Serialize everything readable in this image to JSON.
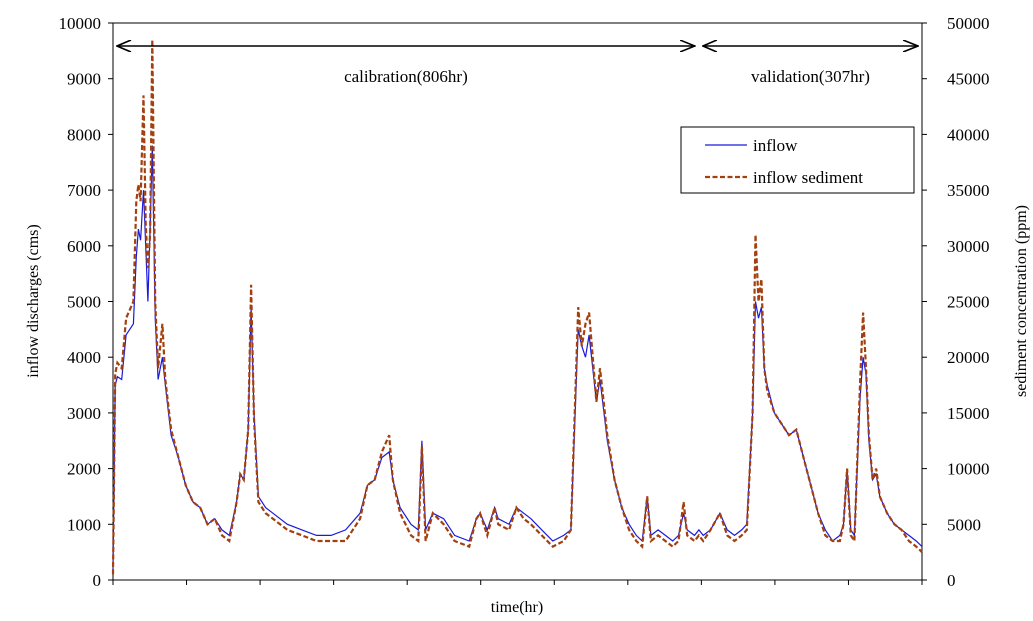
{
  "chart_data": {
    "type": "line",
    "title": "",
    "xlabel": "time(hr)",
    "ylabel": "inflow discharges (cms)",
    "y2label": "sediment concentration (ppm)",
    "xlim": [
      0,
      1113
    ],
    "ylim": [
      0,
      10000
    ],
    "y2lim": [
      0,
      50000
    ],
    "yticks": [
      "0",
      "1000",
      "2000",
      "3000",
      "4000",
      "5000",
      "6000",
      "7000",
      "8000",
      "9000",
      "10000"
    ],
    "y2ticks": [
      "0",
      "5000",
      "10000",
      "15000",
      "20000",
      "25000",
      "30000",
      "35000",
      "40000",
      "45000",
      "50000"
    ],
    "grid": false,
    "legend": "top-right",
    "annotations": [
      {
        "text": "calibration(806hr)",
        "from": 0,
        "to": 806
      },
      {
        "text": "validation(307hr)",
        "from": 806,
        "to": 1113
      }
    ],
    "series": [
      {
        "name": "inflow",
        "axis": "left",
        "color": "#1a1adb",
        "style": "solid",
        "points": [
          [
            0,
            200
          ],
          [
            3,
            3500
          ],
          [
            6,
            3650
          ],
          [
            12,
            3600
          ],
          [
            18,
            4400
          ],
          [
            28,
            4600
          ],
          [
            32,
            5800
          ],
          [
            35,
            6300
          ],
          [
            38,
            6100
          ],
          [
            42,
            7000
          ],
          [
            45,
            6000
          ],
          [
            48,
            5000
          ],
          [
            51,
            6300
          ],
          [
            54,
            7800
          ],
          [
            58,
            4700
          ],
          [
            62,
            3600
          ],
          [
            68,
            4000
          ],
          [
            72,
            3500
          ],
          [
            80,
            2600
          ],
          [
            90,
            2200
          ],
          [
            100,
            1700
          ],
          [
            110,
            1400
          ],
          [
            120,
            1300
          ],
          [
            130,
            1000
          ],
          [
            140,
            1100
          ],
          [
            150,
            900
          ],
          [
            160,
            800
          ],
          [
            170,
            1400
          ],
          [
            175,
            1900
          ],
          [
            180,
            1800
          ],
          [
            186,
            2700
          ],
          [
            190,
            4900
          ],
          [
            194,
            3000
          ],
          [
            200,
            1500
          ],
          [
            210,
            1300
          ],
          [
            220,
            1200
          ],
          [
            240,
            1000
          ],
          [
            260,
            900
          ],
          [
            280,
            800
          ],
          [
            300,
            800
          ],
          [
            320,
            900
          ],
          [
            340,
            1200
          ],
          [
            350,
            1700
          ],
          [
            360,
            1800
          ],
          [
            370,
            2200
          ],
          [
            380,
            2300
          ],
          [
            385,
            1800
          ],
          [
            395,
            1300
          ],
          [
            410,
            1000
          ],
          [
            420,
            900
          ],
          [
            425,
            2500
          ],
          [
            430,
            900
          ],
          [
            440,
            1200
          ],
          [
            455,
            1100
          ],
          [
            470,
            800
          ],
          [
            490,
            700
          ],
          [
            500,
            1100
          ],
          [
            505,
            1200
          ],
          [
            515,
            900
          ],
          [
            525,
            1300
          ],
          [
            530,
            1100
          ],
          [
            545,
            1000
          ],
          [
            555,
            1300
          ],
          [
            565,
            1200
          ],
          [
            575,
            1100
          ],
          [
            590,
            900
          ],
          [
            605,
            700
          ],
          [
            620,
            800
          ],
          [
            630,
            900
          ],
          [
            640,
            4500
          ],
          [
            645,
            4200
          ],
          [
            650,
            4000
          ],
          [
            655,
            4400
          ],
          [
            665,
            3200
          ],
          [
            670,
            3600
          ],
          [
            680,
            2500
          ],
          [
            690,
            1800
          ],
          [
            700,
            1300
          ],
          [
            710,
            1000
          ],
          [
            720,
            800
          ],
          [
            728,
            700
          ],
          [
            735,
            1500
          ],
          [
            740,
            800
          ],
          [
            750,
            900
          ],
          [
            760,
            800
          ],
          [
            770,
            700
          ],
          [
            778,
            800
          ],
          [
            785,
            1200
          ],
          [
            790,
            900
          ],
          [
            800,
            800
          ],
          [
            806,
            900
          ],
          [
            812,
            800
          ],
          [
            822,
            900
          ],
          [
            835,
            1200
          ],
          [
            845,
            900
          ],
          [
            855,
            800
          ],
          [
            865,
            900
          ],
          [
            872,
            1000
          ],
          [
            880,
            3000
          ],
          [
            884,
            5000
          ],
          [
            888,
            4700
          ],
          [
            892,
            4900
          ],
          [
            896,
            3800
          ],
          [
            900,
            3500
          ],
          [
            910,
            3000
          ],
          [
            920,
            2800
          ],
          [
            930,
            2600
          ],
          [
            940,
            2700
          ],
          [
            950,
            2200
          ],
          [
            960,
            1700
          ],
          [
            970,
            1200
          ],
          [
            980,
            900
          ],
          [
            990,
            700
          ],
          [
            1000,
            800
          ],
          [
            1005,
            1000
          ],
          [
            1010,
            2000
          ],
          [
            1015,
            900
          ],
          [
            1020,
            800
          ],
          [
            1028,
            3300
          ],
          [
            1032,
            4000
          ],
          [
            1036,
            3700
          ],
          [
            1040,
            2500
          ],
          [
            1045,
            1800
          ],
          [
            1050,
            1900
          ],
          [
            1055,
            1500
          ],
          [
            1065,
            1200
          ],
          [
            1075,
            1000
          ],
          [
            1085,
            900
          ],
          [
            1095,
            800
          ],
          [
            1105,
            700
          ],
          [
            1113,
            600
          ]
        ]
      },
      {
        "name": "inflow sediment",
        "axis": "right",
        "color": "#a3400f",
        "style": "dashed",
        "points": [
          [
            0,
            500
          ],
          [
            3,
            18500
          ],
          [
            6,
            19500
          ],
          [
            12,
            19000
          ],
          [
            18,
            23500
          ],
          [
            28,
            25000
          ],
          [
            32,
            34000
          ],
          [
            35,
            35500
          ],
          [
            38,
            34000
          ],
          [
            42,
            43500
          ],
          [
            45,
            32000
          ],
          [
            48,
            28000
          ],
          [
            51,
            31000
          ],
          [
            54,
            48500
          ],
          [
            58,
            25000
          ],
          [
            62,
            19000
          ],
          [
            68,
            23000
          ],
          [
            72,
            18000
          ],
          [
            80,
            13500
          ],
          [
            90,
            11000
          ],
          [
            100,
            8500
          ],
          [
            110,
            7000
          ],
          [
            120,
            6500
          ],
          [
            130,
            5000
          ],
          [
            140,
            5500
          ],
          [
            150,
            4000
          ],
          [
            160,
            3500
          ],
          [
            170,
            7000
          ],
          [
            175,
            9500
          ],
          [
            180,
            9000
          ],
          [
            186,
            13500
          ],
          [
            190,
            26500
          ],
          [
            194,
            14500
          ],
          [
            200,
            7000
          ],
          [
            210,
            6000
          ],
          [
            220,
            5500
          ],
          [
            240,
            4500
          ],
          [
            260,
            4000
          ],
          [
            280,
            3500
          ],
          [
            300,
            3500
          ],
          [
            320,
            3500
          ],
          [
            340,
            5500
          ],
          [
            350,
            8500
          ],
          [
            360,
            9000
          ],
          [
            370,
            11500
          ],
          [
            380,
            13000
          ],
          [
            385,
            9000
          ],
          [
            395,
            6000
          ],
          [
            410,
            4000
          ],
          [
            420,
            3500
          ],
          [
            425,
            12000
          ],
          [
            430,
            3500
          ],
          [
            440,
            6000
          ],
          [
            455,
            5000
          ],
          [
            470,
            3500
          ],
          [
            490,
            3000
          ],
          [
            500,
            5500
          ],
          [
            505,
            6000
          ],
          [
            515,
            4000
          ],
          [
            525,
            6500
          ],
          [
            530,
            5000
          ],
          [
            545,
            4500
          ],
          [
            555,
            6500
          ],
          [
            565,
            5500
          ],
          [
            575,
            5000
          ],
          [
            590,
            4000
          ],
          [
            605,
            3000
          ],
          [
            620,
            3500
          ],
          [
            630,
            4500
          ],
          [
            640,
            24500
          ],
          [
            645,
            21000
          ],
          [
            650,
            23000
          ],
          [
            655,
            24000
          ],
          [
            665,
            16000
          ],
          [
            670,
            19000
          ],
          [
            680,
            13000
          ],
          [
            690,
            9000
          ],
          [
            700,
            6500
          ],
          [
            710,
            4500
          ],
          [
            720,
            3500
          ],
          [
            728,
            3000
          ],
          [
            735,
            7500
          ],
          [
            740,
            3500
          ],
          [
            750,
            4000
          ],
          [
            760,
            3500
          ],
          [
            770,
            3000
          ],
          [
            778,
            3500
          ],
          [
            785,
            7000
          ],
          [
            790,
            4000
          ],
          [
            800,
            3500
          ],
          [
            806,
            4000
          ],
          [
            812,
            3500
          ],
          [
            822,
            4500
          ],
          [
            835,
            6000
          ],
          [
            845,
            4000
          ],
          [
            855,
            3500
          ],
          [
            865,
            4000
          ],
          [
            872,
            4500
          ],
          [
            880,
            15000
          ],
          [
            884,
            31000
          ],
          [
            888,
            25000
          ],
          [
            892,
            27000
          ],
          [
            896,
            19000
          ],
          [
            900,
            17000
          ],
          [
            910,
            15000
          ],
          [
            920,
            14000
          ],
          [
            930,
            13000
          ],
          [
            940,
            13500
          ],
          [
            950,
            11000
          ],
          [
            960,
            8500
          ],
          [
            970,
            6000
          ],
          [
            980,
            4000
          ],
          [
            990,
            3500
          ],
          [
            1000,
            3500
          ],
          [
            1005,
            5000
          ],
          [
            1010,
            10000
          ],
          [
            1015,
            4000
          ],
          [
            1020,
            3500
          ],
          [
            1028,
            18000
          ],
          [
            1032,
            24000
          ],
          [
            1036,
            19000
          ],
          [
            1040,
            13000
          ],
          [
            1045,
            9000
          ],
          [
            1050,
            10000
          ],
          [
            1055,
            7500
          ],
          [
            1065,
            6000
          ],
          [
            1075,
            5000
          ],
          [
            1085,
            4500
          ],
          [
            1095,
            3500
          ],
          [
            1105,
            3000
          ],
          [
            1113,
            2500
          ]
        ]
      }
    ]
  }
}
